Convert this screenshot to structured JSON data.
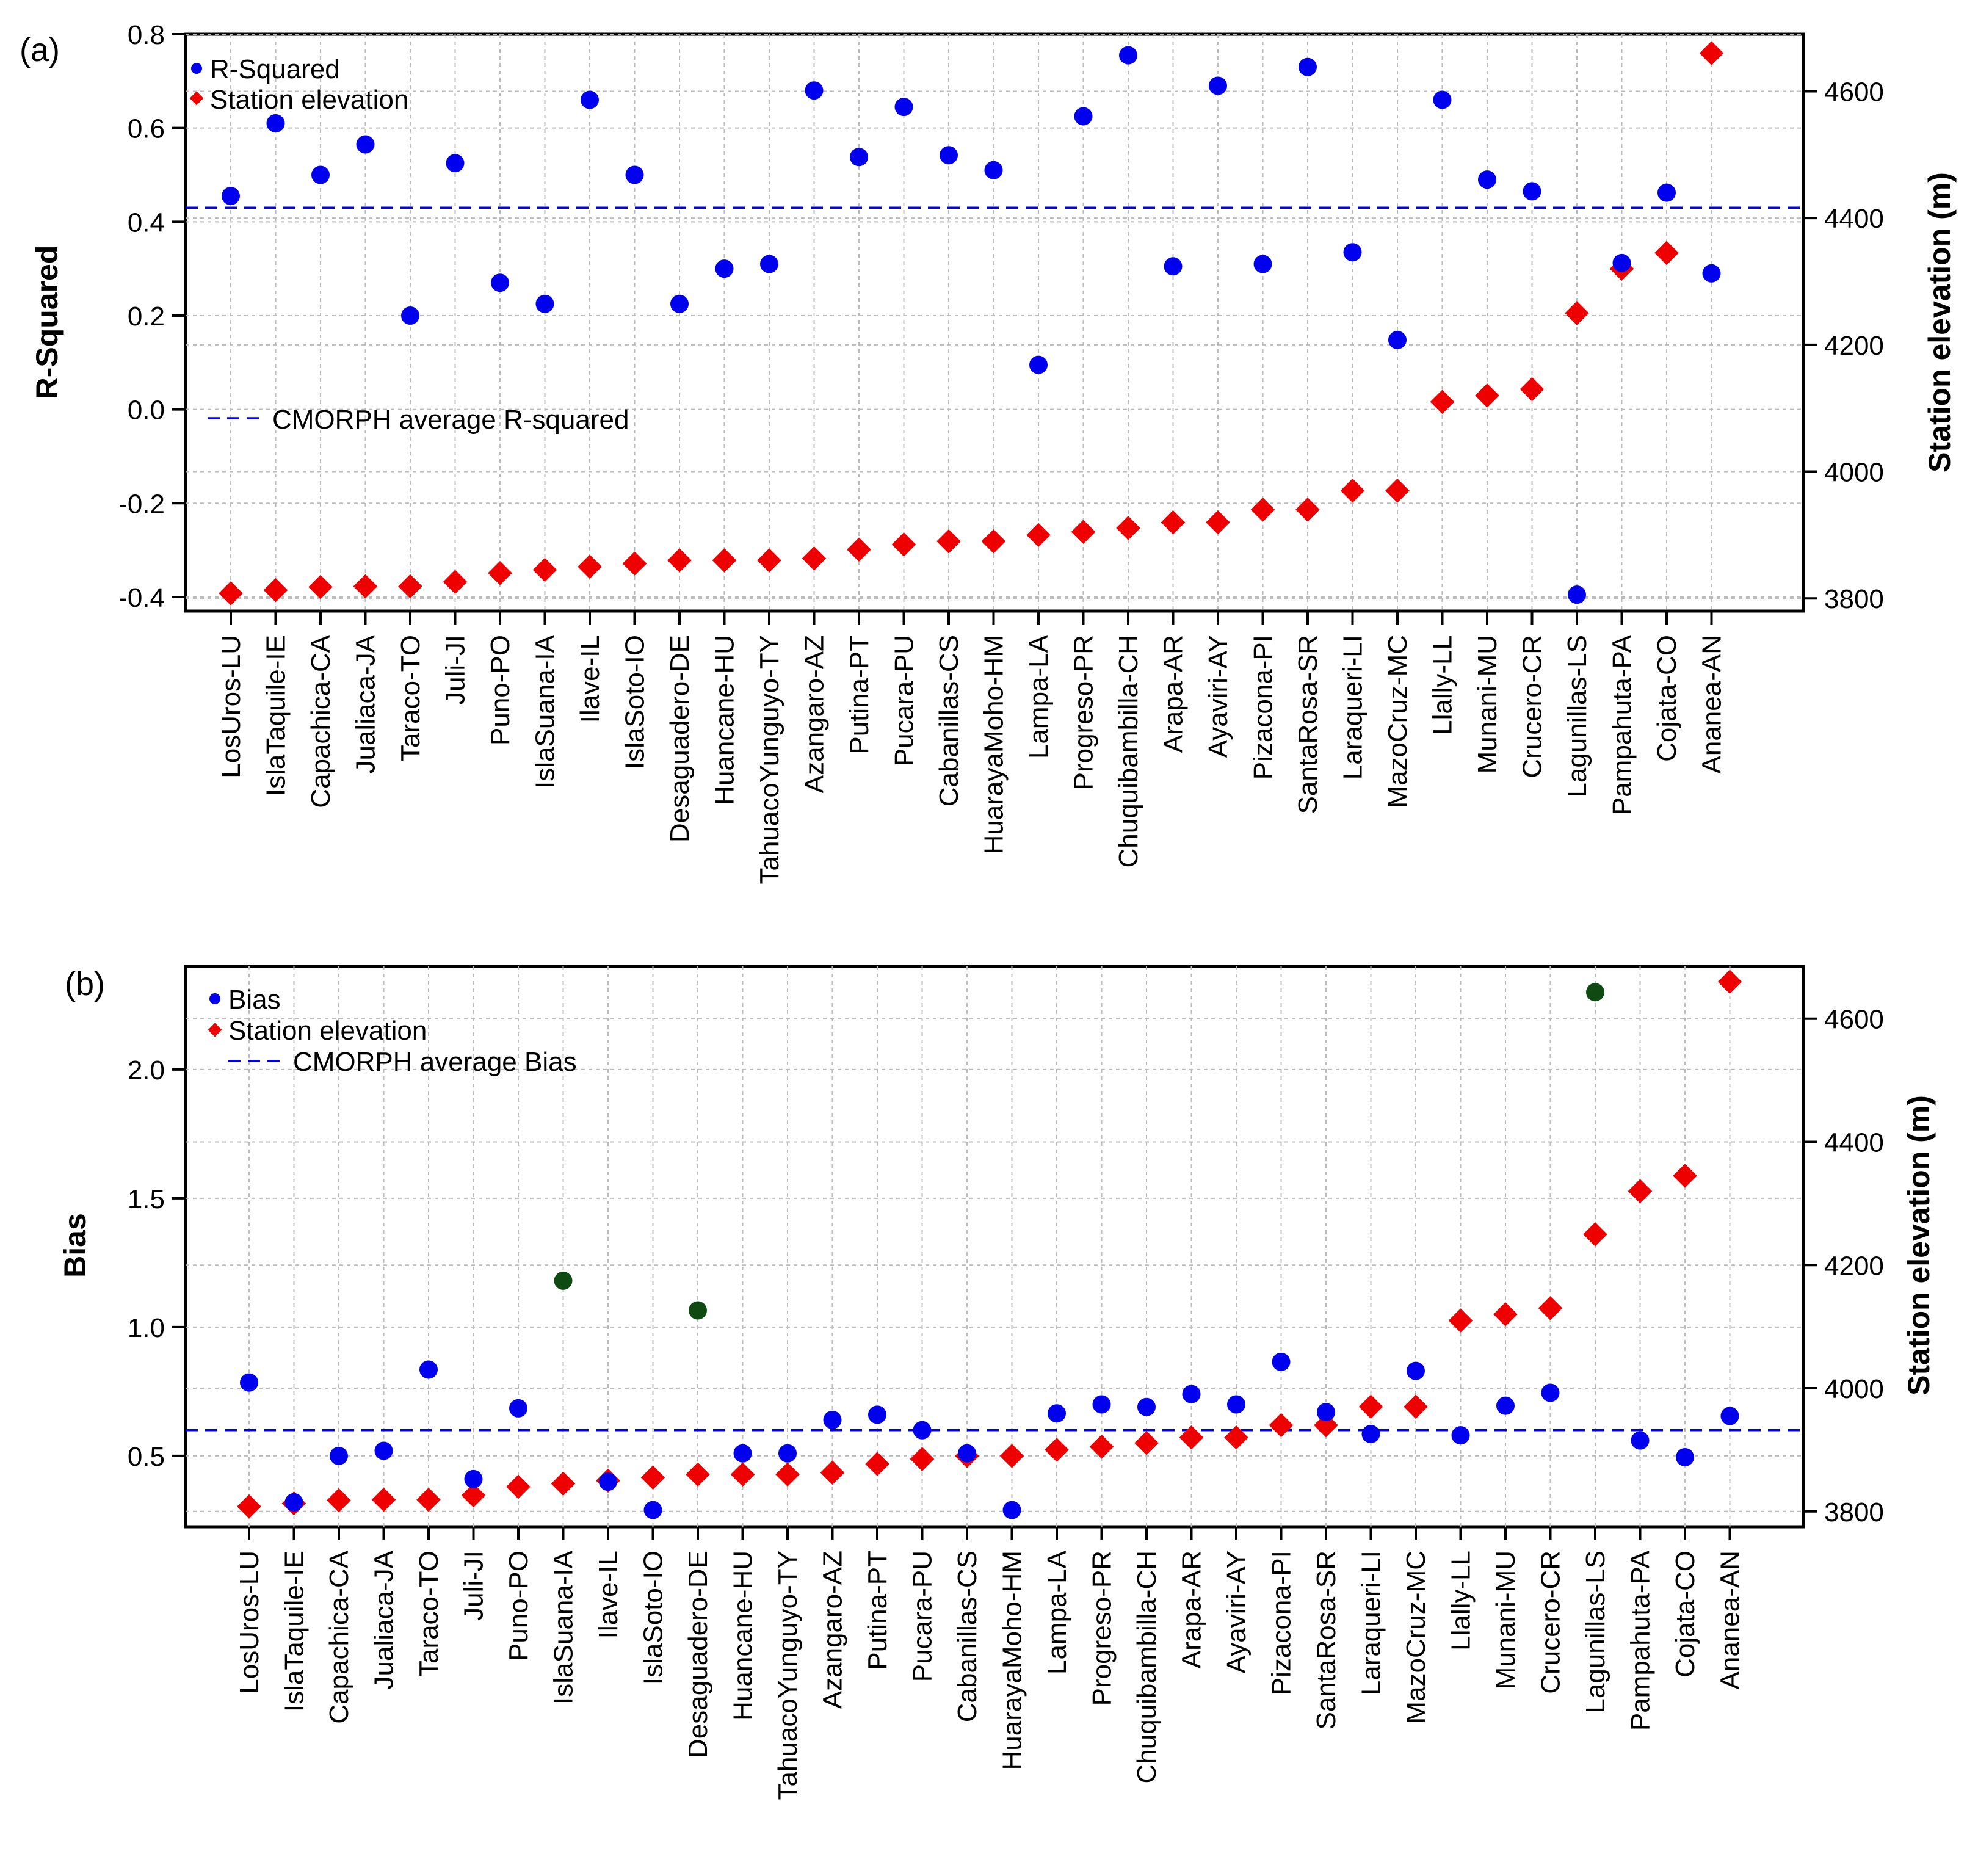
{
  "stations": [
    "LosUros-LU",
    "IslaTaquile-IE",
    "Capachica-CA",
    "Jualiaca-JA",
    "Taraco-TO",
    "Juli-JI",
    "Puno-PO",
    "IslaSuana-IA",
    "Ilave-IL",
    "IslaSoto-IO",
    "Desaguadero-DE",
    "Huancane-HU",
    "TahuacoYunguyo-TY",
    "Azangaro-AZ",
    "Putina-PT",
    "Pucara-PU",
    "Cabanillas-CS",
    "HuarayaMoho-HM",
    "Lampa-LA",
    "Progreso-PR",
    "Chuquibambilla-CH",
    "Arapa-AR",
    "Ayaviri-AY",
    "Pizacona-PI",
    "SantaRosa-SR",
    "Laraqueri-LI",
    "MazoCruz-MC",
    "Llally-LL",
    "Munani-MU",
    "Crucero-CR",
    "Lagunillas-LS",
    "Pampahuta-PA",
    "Cojata-CO",
    "Ananea-AN"
  ],
  "colors": {
    "primary": "#0000ee",
    "elevation": "#ee0000",
    "outlier": "#0f4a13",
    "grid": "#bbbbbb"
  },
  "chart_data": [
    {
      "type": "scatter",
      "panel_label": "(a)",
      "categories_ref": "stations",
      "ylabel": "R-Squared",
      "ylabel_right": "Station elevation (m)",
      "ylim": [
        -0.43,
        0.8
      ],
      "ylim_right": [
        3780,
        4690
      ],
      "yticks": [
        "0.8",
        "0.6",
        "0.4",
        "0.2",
        "0.0",
        "-0.2",
        "-0.4"
      ],
      "yticks_right": [
        "4600",
        "4400",
        "4200",
        "4000",
        "3800"
      ],
      "legend": {
        "primary": "R-Squared",
        "elevation": "Station elevation",
        "average": "CMORPH average R-squared"
      },
      "average_value": 0.43,
      "series": [
        {
          "name": "R-Squared",
          "axis": "left",
          "marker": "circle",
          "values": [
            0.455,
            0.61,
            0.5,
            0.565,
            0.2,
            0.525,
            0.27,
            0.225,
            0.66,
            0.5,
            0.225,
            0.3,
            0.31,
            0.68,
            0.538,
            0.645,
            0.542,
            0.51,
            0.095,
            0.625,
            0.755,
            0.305,
            0.69,
            0.31,
            0.73,
            0.335,
            0.148,
            0.66,
            0.49,
            0.465,
            -0.395,
            0.312,
            0.462,
            0.29
          ]
        },
        {
          "name": "Station elevation",
          "axis": "right",
          "marker": "diamond",
          "values": [
            3808,
            3813,
            3818,
            3819,
            3819,
            3826,
            3840,
            3845,
            3850,
            3855,
            3860,
            3860,
            3860,
            3863,
            3877,
            3885,
            3890,
            3890,
            3900,
            3905,
            3911,
            3920,
            3920,
            3940,
            3940,
            3970,
            3970,
            4110,
            4120,
            4130,
            4250,
            4320,
            4345,
            4660
          ]
        }
      ]
    },
    {
      "type": "scatter",
      "panel_label": "(b)",
      "categories_ref": "stations",
      "ylabel": "Bias",
      "ylabel_right": "Station elevation (m)",
      "ylim": [
        0.225,
        2.4
      ],
      "ylim_right": [
        3775,
        4685
      ],
      "yticks": [
        "2.0",
        "1.5",
        "1.0",
        "0.5"
      ],
      "yticks_right": [
        "4600",
        "4400",
        "4200",
        "4000",
        "3800"
      ],
      "legend": {
        "primary": "Bias",
        "elevation": "Station elevation",
        "average": "CMORPH average Bias"
      },
      "average_value": 0.6,
      "series": [
        {
          "name": "Bias",
          "axis": "left",
          "marker": "circle",
          "values": [
            0.785,
            0.32,
            0.5,
            0.52,
            0.835,
            0.41,
            0.685,
            1.18,
            0.4,
            0.29,
            1.065,
            0.51,
            0.51,
            0.64,
            0.66,
            0.6,
            0.51,
            0.29,
            0.665,
            0.7,
            0.69,
            0.74,
            0.7,
            0.865,
            0.67,
            0.585,
            0.83,
            0.58,
            0.695,
            0.745,
            2.3,
            0.56,
            0.495,
            0.655
          ],
          "outlier_indices": [
            7,
            10,
            30
          ]
        },
        {
          "name": "Station elevation",
          "axis": "right",
          "marker": "diamond",
          "values": [
            3808,
            3813,
            3818,
            3819,
            3819,
            3826,
            3840,
            3845,
            3850,
            3855,
            3860,
            3860,
            3860,
            3863,
            3877,
            3885,
            3890,
            3890,
            3900,
            3905,
            3911,
            3920,
            3920,
            3940,
            3940,
            3970,
            3970,
            4110,
            4120,
            4130,
            4250,
            4320,
            4345,
            4660
          ]
        }
      ]
    }
  ]
}
